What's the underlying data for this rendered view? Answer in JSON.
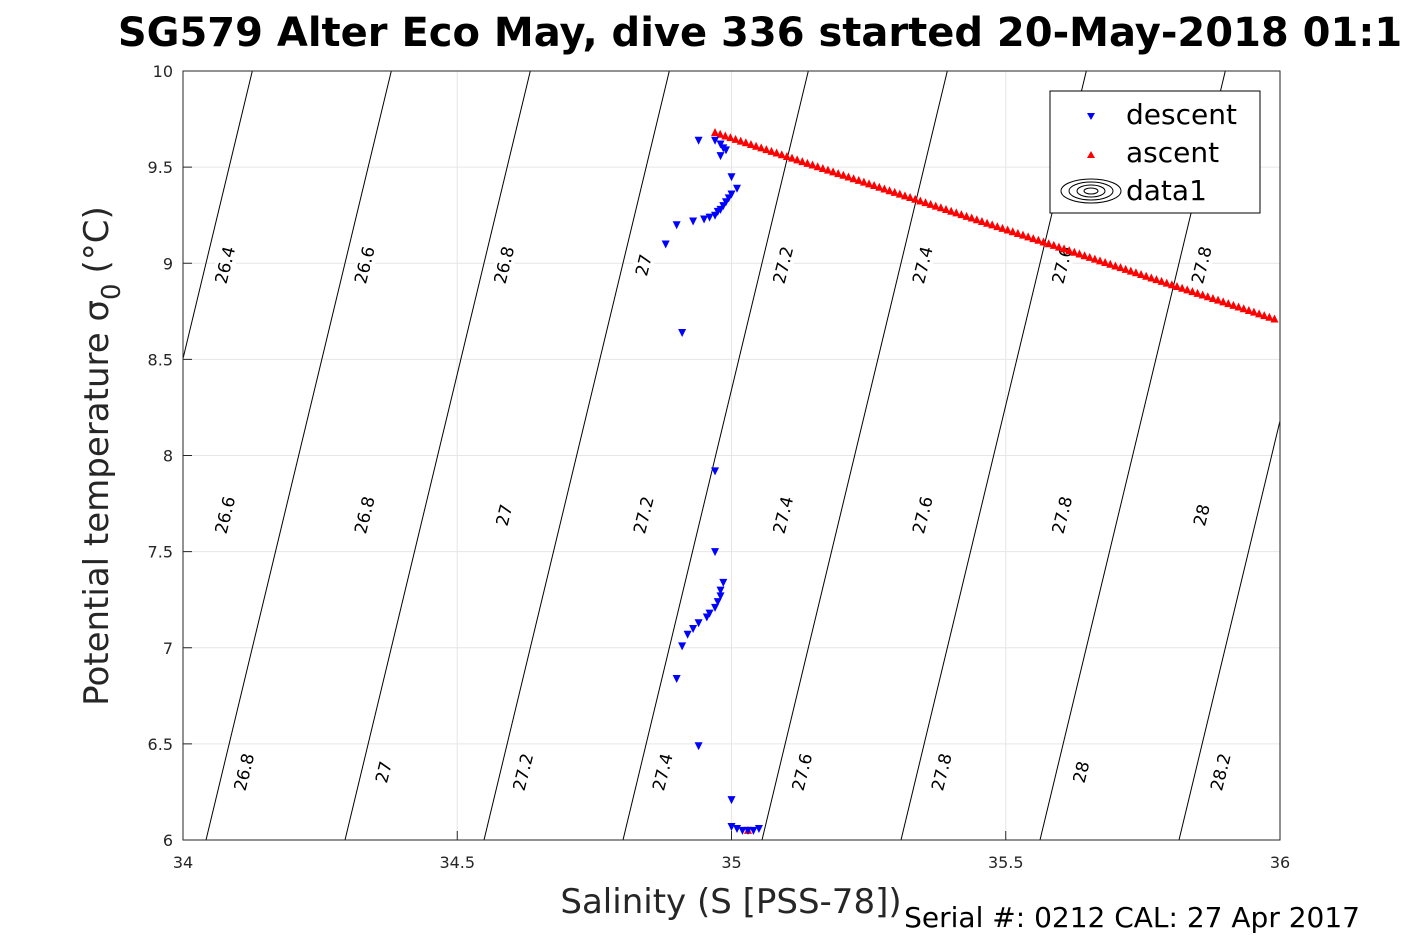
{
  "chart_data": {
    "type": "scatter",
    "title": "SG579 Alter Eco May, dive 336 started 20-May-2018 01:1",
    "xlabel": "Salinity (S [PSS-78])",
    "ylabel": "Potential temperature σ",
    "ylabel_subscript": "0",
    "ylabel_unit": "(°C)",
    "footer": "Serial #: 0212  CAL: 27 Apr 2017",
    "xlim": [
      34,
      36
    ],
    "ylim": [
      6,
      10
    ],
    "xticks": [
      "34",
      "34.5",
      "35",
      "35.5",
      "36"
    ],
    "yticks": [
      "6",
      "6.5",
      "7",
      "7.5",
      "8",
      "8.5",
      "9",
      "9.5",
      "10"
    ],
    "grid": true,
    "legend_position": "top-right",
    "contour_labels": [
      "26.4",
      "26.6",
      "26.8",
      "27",
      "27.2",
      "27.4",
      "27.6",
      "27.8",
      "26.6",
      "26.8",
      "27",
      "27.2",
      "27.4",
      "27.6",
      "27.8",
      "28",
      "26.8",
      "27",
      "27.2",
      "27.4",
      "27.6",
      "27.8",
      "28",
      "28.2"
    ],
    "series": [
      {
        "name": "descent",
        "marker": "triangle-down",
        "color": "#0000ff",
        "points": [
          [
            34.94,
            9.64
          ],
          [
            34.97,
            9.64
          ],
          [
            34.98,
            9.62
          ],
          [
            34.985,
            9.6
          ],
          [
            34.99,
            9.59
          ],
          [
            34.98,
            9.56
          ],
          [
            35.0,
            9.45
          ],
          [
            35.01,
            9.39
          ],
          [
            35.0,
            9.36
          ],
          [
            34.995,
            9.34
          ],
          [
            34.99,
            9.32
          ],
          [
            34.985,
            9.3
          ],
          [
            34.98,
            9.28
          ],
          [
            34.975,
            9.27
          ],
          [
            34.97,
            9.25
          ],
          [
            34.96,
            9.24
          ],
          [
            34.95,
            9.23
          ],
          [
            34.93,
            9.22
          ],
          [
            34.9,
            9.2
          ],
          [
            34.88,
            9.1
          ],
          [
            34.91,
            8.64
          ],
          [
            34.97,
            7.92
          ],
          [
            34.97,
            7.5
          ],
          [
            34.985,
            7.34
          ],
          [
            34.98,
            7.3
          ],
          [
            34.98,
            7.27
          ],
          [
            34.975,
            7.24
          ],
          [
            34.97,
            7.21
          ],
          [
            34.96,
            7.18
          ],
          [
            34.955,
            7.16
          ],
          [
            34.94,
            7.13
          ],
          [
            34.93,
            7.1
          ],
          [
            34.92,
            7.07
          ],
          [
            34.91,
            7.01
          ],
          [
            34.9,
            6.84
          ],
          [
            34.94,
            6.49
          ],
          [
            35.0,
            6.21
          ],
          [
            35.0,
            6.07
          ],
          [
            35.01,
            6.06
          ],
          [
            35.02,
            6.05
          ],
          [
            35.03,
            6.05
          ],
          [
            35.04,
            6.05
          ],
          [
            35.05,
            6.06
          ]
        ]
      },
      {
        "name": "ascent",
        "marker": "triangle-up",
        "color": "#ff0000",
        "line_from": [
          34.97,
          9.68
        ],
        "line_to": [
          35.99,
          8.71
        ],
        "point_count": 110,
        "extra_points": [
          [
            35.03,
            6.05
          ]
        ]
      },
      {
        "name": "data1",
        "marker": "contour-ellipses",
        "color": "#000000"
      }
    ]
  }
}
